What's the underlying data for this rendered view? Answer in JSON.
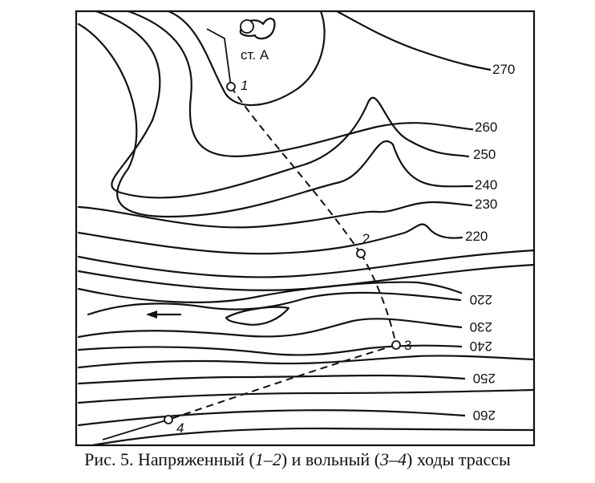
{
  "station": {
    "label": "ст. А"
  },
  "points": [
    {
      "id": "p1",
      "label": "1"
    },
    {
      "id": "p2",
      "label": "2"
    },
    {
      "id": "p3",
      "label": "3"
    },
    {
      "id": "p4",
      "label": "4"
    }
  ],
  "contour_labels": {
    "right_top": [
      "270",
      "260",
      "250",
      "240",
      "230",
      "220"
    ],
    "right_bottom": [
      "220",
      "230",
      "240",
      "250",
      "260"
    ]
  },
  "caption": {
    "prefix": "Рис. 5. Напряженный (",
    "route1": "1–2",
    "middle": ") и вольный (",
    "route2": "3–4",
    "suffix": ") ходы трассы"
  }
}
